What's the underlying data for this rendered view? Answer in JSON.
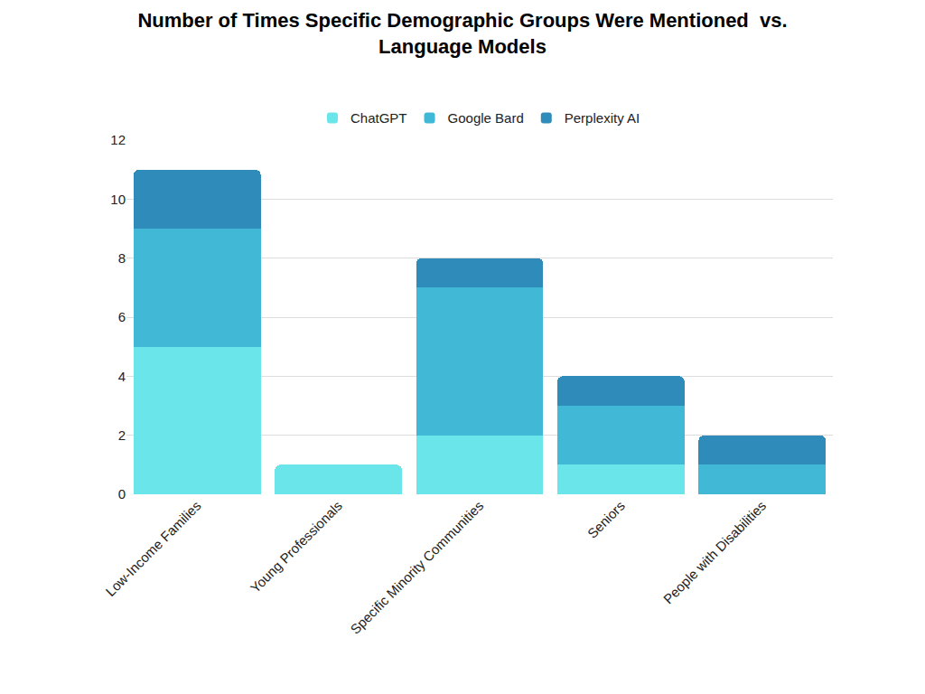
{
  "chart_data": {
    "type": "bar",
    "title": "Number of Times Specific Demographic Groups Were Mentioned  vs. Language Models",
    "categories": [
      "Low-Income Families",
      "Young Professionals",
      "Specific Minority Communities",
      "Seniors",
      "People with Disabilities"
    ],
    "series": [
      {
        "name": "ChatGPT",
        "color": "#6ae5e9",
        "values": [
          5,
          1,
          2,
          1,
          0
        ]
      },
      {
        "name": "Google Bard",
        "color": "#41b8d5",
        "values": [
          4,
          0,
          5,
          2,
          1
        ]
      },
      {
        "name": "Perplexity AI",
        "color": "#2e8bba",
        "values": [
          2,
          0,
          1,
          1,
          1
        ]
      }
    ],
    "stacked": true,
    "ylim": [
      0,
      12
    ],
    "yticks": [
      0,
      2,
      4,
      6,
      8,
      10,
      12
    ],
    "grid": true,
    "legend": "top"
  }
}
